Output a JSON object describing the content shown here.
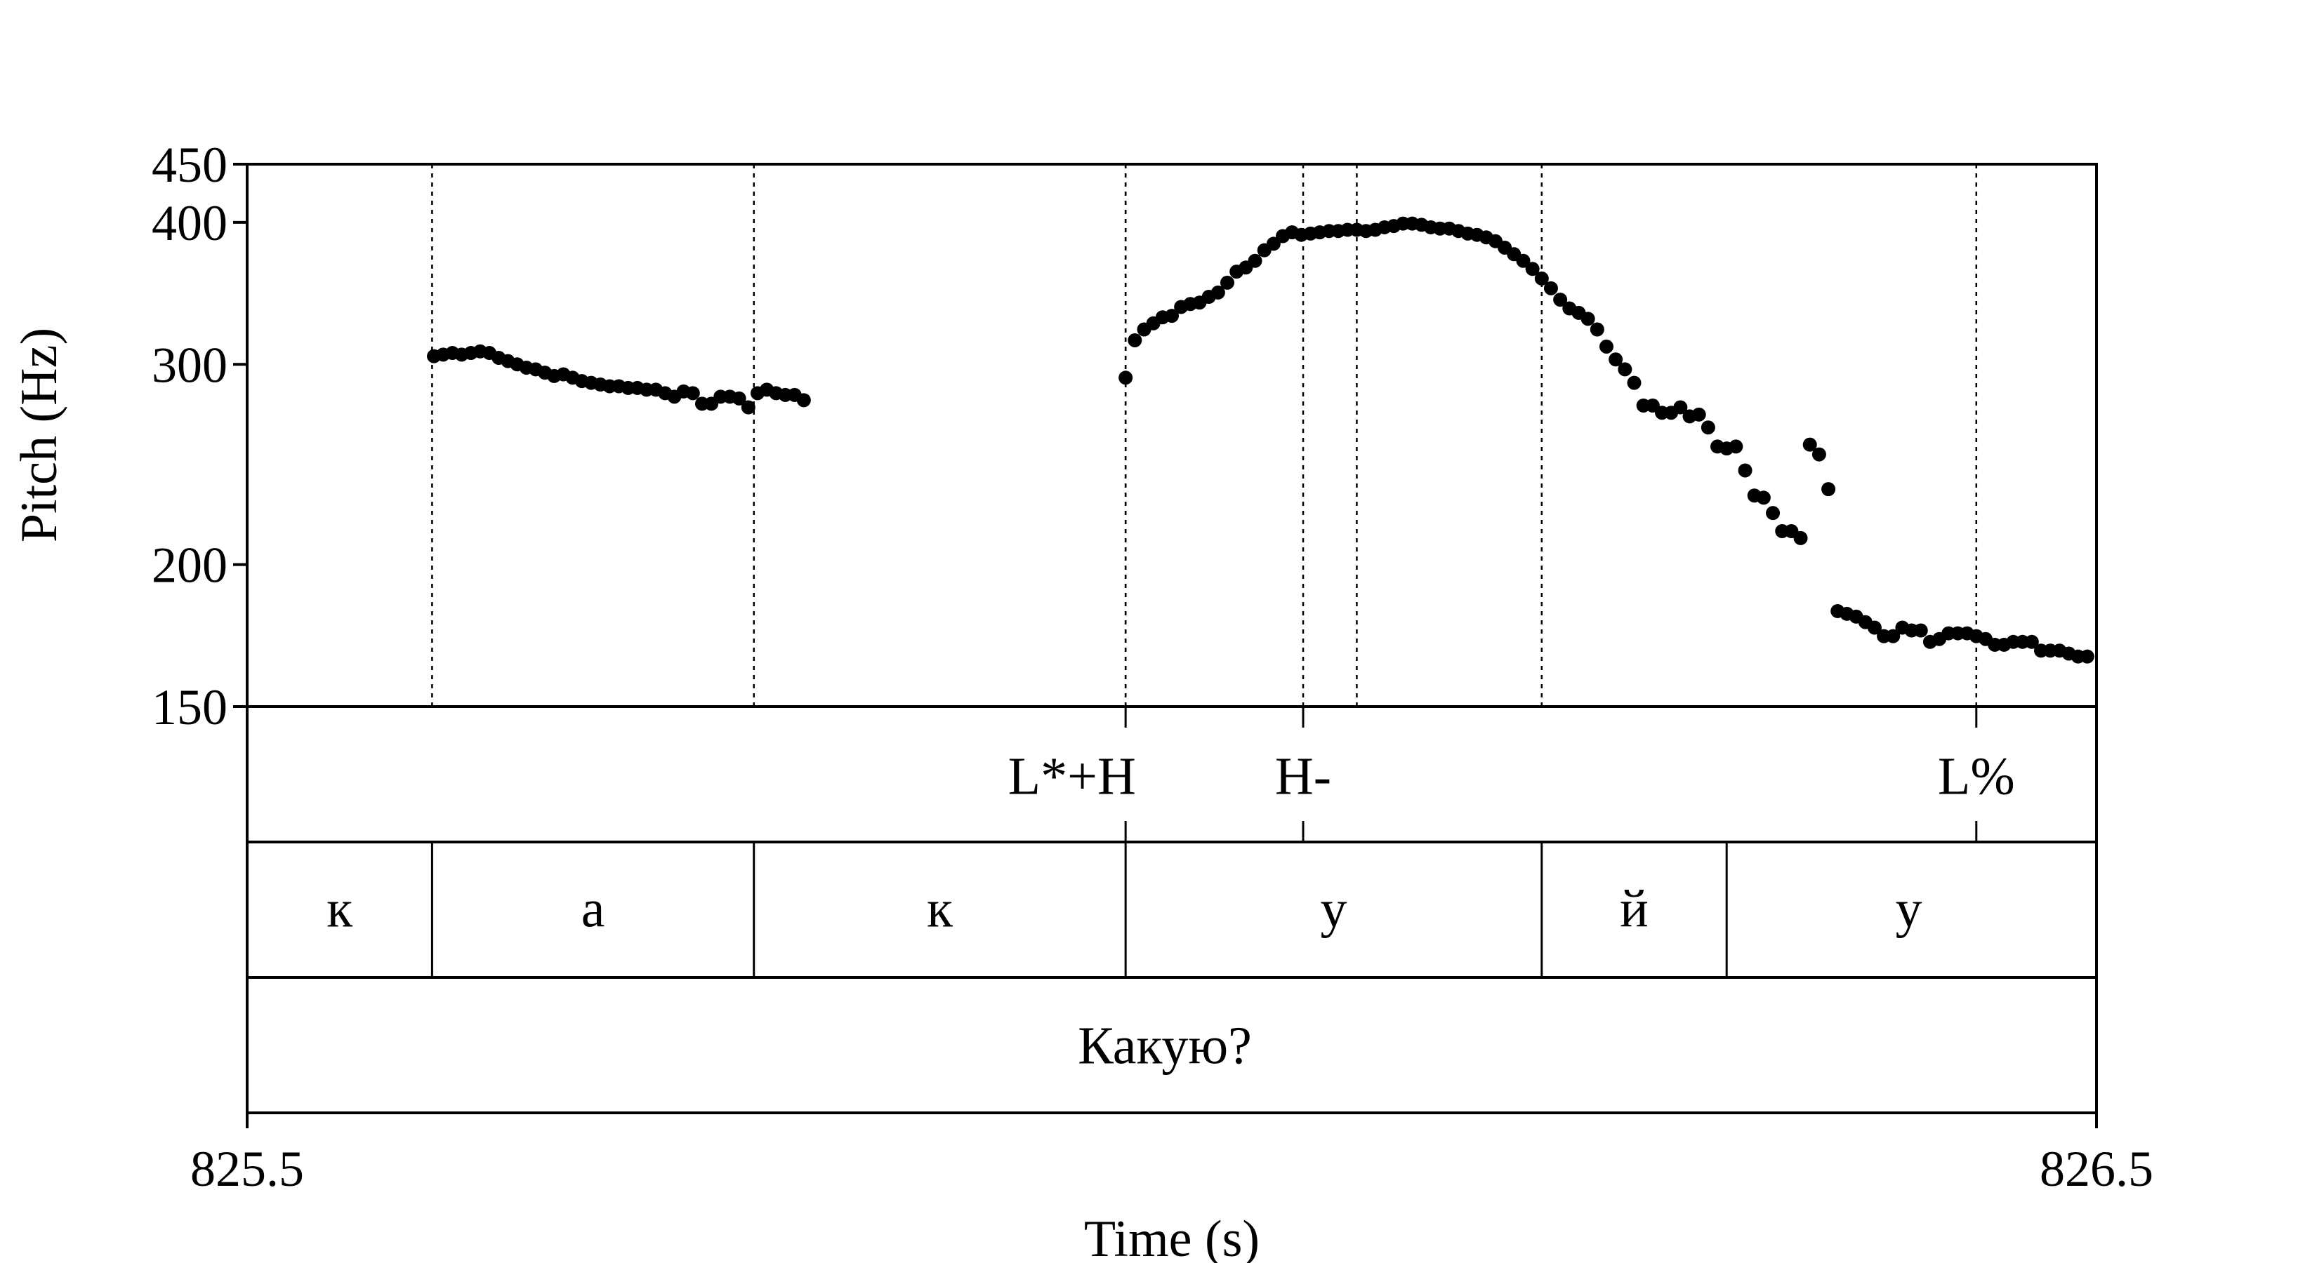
{
  "chart_data": {
    "type": "scatter",
    "xlabel": "Time (s)",
    "ylabel": "Pitch (Hz)",
    "xlim": [
      825.5,
      826.5
    ],
    "ylim": [
      150,
      450
    ],
    "y_scale": "log",
    "x_tick_labels": [
      "825.5",
      "826.5"
    ],
    "y_ticks": [
      {
        "value": 150,
        "label": "150"
      },
      {
        "value": 200,
        "label": "200"
      },
      {
        "value": 300,
        "label": "300"
      },
      {
        "value": 400,
        "label": "400"
      },
      {
        "value": 450,
        "label": "450"
      }
    ],
    "boundaries": [
      825.6,
      825.774,
      825.975,
      826.1,
      826.2
    ],
    "tone_tier": [
      {
        "time": 825.975,
        "label": "L*+H",
        "label_center": 825.946
      },
      {
        "time": 826.071,
        "label": "H-",
        "label_center": 826.071
      },
      {
        "time": 826.435,
        "label": "L%",
        "label_center": 826.435
      }
    ],
    "segment_tier": [
      {
        "start": 825.5,
        "end": 825.6,
        "label": "к"
      },
      {
        "start": 825.6,
        "end": 825.774,
        "label": "а"
      },
      {
        "start": 825.774,
        "end": 825.975,
        "label": "к"
      },
      {
        "start": 825.975,
        "end": 826.2,
        "label": "у"
      },
      {
        "start": 826.2,
        "end": 826.3,
        "label": "й"
      },
      {
        "start": 826.3,
        "end": 826.497,
        "label": "у"
      }
    ],
    "word_tier": [
      {
        "start": 825.5,
        "end": 826.5,
        "label": "Какую?"
      }
    ],
    "points": [
      [
        825.601,
        305
      ],
      [
        825.606,
        306
      ],
      [
        825.611,
        307
      ],
      [
        825.616,
        306
      ],
      [
        825.621,
        307
      ],
      [
        825.626,
        308
      ],
      [
        825.631,
        307
      ],
      [
        825.636,
        304
      ],
      [
        825.641,
        302
      ],
      [
        825.646,
        300
      ],
      [
        825.651,
        298
      ],
      [
        825.656,
        297
      ],
      [
        825.661,
        295
      ],
      [
        825.666,
        293
      ],
      [
        825.671,
        294
      ],
      [
        825.676,
        292
      ],
      [
        825.681,
        290
      ],
      [
        825.686,
        289
      ],
      [
        825.691,
        288
      ],
      [
        825.696,
        287
      ],
      [
        825.701,
        287
      ],
      [
        825.706,
        286
      ],
      [
        825.711,
        286
      ],
      [
        825.716,
        285
      ],
      [
        825.721,
        285
      ],
      [
        825.726,
        283
      ],
      [
        825.731,
        281
      ],
      [
        825.736,
        284
      ],
      [
        825.741,
        283
      ],
      [
        825.746,
        277
      ],
      [
        825.751,
        277
      ],
      [
        825.756,
        281
      ],
      [
        825.761,
        281
      ],
      [
        825.766,
        280
      ],
      [
        825.771,
        275
      ],
      [
        825.776,
        283
      ],
      [
        825.781,
        285
      ],
      [
        825.786,
        283
      ],
      [
        825.791,
        282
      ],
      [
        825.796,
        282
      ],
      [
        825.801,
        279
      ],
      [
        825.975,
        292
      ],
      [
        825.98,
        315
      ],
      [
        825.985,
        322
      ],
      [
        825.99,
        326
      ],
      [
        825.995,
        330
      ],
      [
        826.0,
        331
      ],
      [
        826.005,
        337
      ],
      [
        826.01,
        339
      ],
      [
        826.015,
        340
      ],
      [
        826.02,
        344
      ],
      [
        826.025,
        347
      ],
      [
        826.03,
        354
      ],
      [
        826.035,
        362
      ],
      [
        826.04,
        365
      ],
      [
        826.045,
        370
      ],
      [
        826.05,
        378
      ],
      [
        826.055,
        383
      ],
      [
        826.06,
        389
      ],
      [
        826.065,
        392
      ],
      [
        826.07,
        390
      ],
      [
        826.075,
        391
      ],
      [
        826.08,
        392
      ],
      [
        826.085,
        393
      ],
      [
        826.09,
        393
      ],
      [
        826.095,
        394
      ],
      [
        826.1,
        394
      ],
      [
        826.105,
        393
      ],
      [
        826.11,
        394
      ],
      [
        826.115,
        396
      ],
      [
        826.12,
        397
      ],
      [
        826.125,
        399
      ],
      [
        826.13,
        399
      ],
      [
        826.135,
        398
      ],
      [
        826.14,
        396
      ],
      [
        826.145,
        395
      ],
      [
        826.15,
        395
      ],
      [
        826.155,
        393
      ],
      [
        826.16,
        391
      ],
      [
        826.165,
        390
      ],
      [
        826.17,
        388
      ],
      [
        826.175,
        385
      ],
      [
        826.18,
        380
      ],
      [
        826.185,
        375
      ],
      [
        826.19,
        370
      ],
      [
        826.195,
        364
      ],
      [
        826.2,
        357
      ],
      [
        826.205,
        350
      ],
      [
        826.21,
        342
      ],
      [
        826.215,
        336
      ],
      [
        826.22,
        333
      ],
      [
        826.225,
        329
      ],
      [
        826.23,
        322
      ],
      [
        826.235,
        311
      ],
      [
        826.24,
        303
      ],
      [
        826.245,
        297
      ],
      [
        826.25,
        289
      ],
      [
        826.255,
        276
      ],
      [
        826.26,
        276
      ],
      [
        826.265,
        272
      ],
      [
        826.27,
        272
      ],
      [
        826.275,
        275
      ],
      [
        826.28,
        270
      ],
      [
        826.285,
        271
      ],
      [
        826.29,
        264
      ],
      [
        826.295,
        254
      ],
      [
        826.3,
        253
      ],
      [
        826.305,
        254
      ],
      [
        826.31,
        242
      ],
      [
        826.315,
        230
      ],
      [
        826.32,
        229
      ],
      [
        826.325,
        222
      ],
      [
        826.33,
        214
      ],
      [
        826.335,
        214
      ],
      [
        826.34,
        211
      ],
      [
        826.345,
        255
      ],
      [
        826.35,
        250
      ],
      [
        826.355,
        233
      ],
      [
        826.36,
        182
      ],
      [
        826.365,
        181
      ],
      [
        826.37,
        180
      ],
      [
        826.375,
        178
      ],
      [
        826.38,
        176
      ],
      [
        826.385,
        173
      ],
      [
        826.39,
        173
      ],
      [
        826.395,
        176
      ],
      [
        826.4,
        175
      ],
      [
        826.405,
        175
      ],
      [
        826.41,
        171
      ],
      [
        826.415,
        172
      ],
      [
        826.42,
        174
      ],
      [
        826.425,
        174
      ],
      [
        826.43,
        174
      ],
      [
        826.435,
        173
      ],
      [
        826.44,
        172
      ],
      [
        826.445,
        170
      ],
      [
        826.45,
        170
      ],
      [
        826.455,
        171
      ],
      [
        826.46,
        171
      ],
      [
        826.465,
        171
      ],
      [
        826.47,
        168
      ],
      [
        826.475,
        168
      ],
      [
        826.48,
        168
      ],
      [
        826.485,
        167
      ],
      [
        826.49,
        166
      ],
      [
        826.495,
        166
      ]
    ]
  }
}
